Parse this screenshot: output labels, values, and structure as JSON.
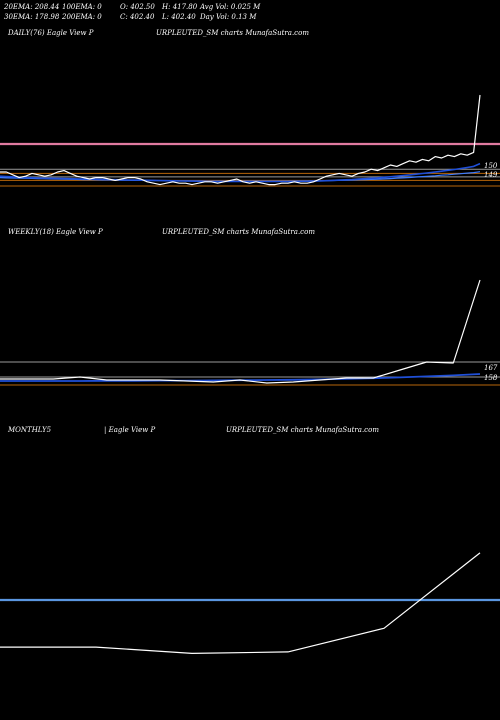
{
  "header": {
    "rows": [
      [
        "20EMA: 208.44",
        "100EMA: 0",
        "O: 402.50",
        "H: 417.80",
        "Avg Vol: 0.025 M"
      ],
      [
        "30EMA: 178.98",
        "200EMA: 0",
        "C: 402.40",
        "L: 402.40",
        "Day Vol: 0.13 M"
      ]
    ]
  },
  "colors": {
    "background": "#000000",
    "price": "#ffffff",
    "ema_fast": "#1f4fd8",
    "ema_slow": "#3b7bff",
    "support_pink": "#e07aa0",
    "grid_gray": "#9a9a9a",
    "support_orange": "#b8660a",
    "weekly_avg": "#5a96e0"
  },
  "panels": {
    "daily": {
      "title": "DAILY(76) Eagle   View  P",
      "source": "URPLEUTED_SM charts MunafaSutra.com",
      "ticks": [
        "150",
        "149"
      ]
    },
    "weekly": {
      "title": "WEEKLY(18) Eagle   View  P",
      "source": "URPLEUTED_SM charts MunafaSutra.com",
      "ticks": [
        "167",
        "158"
      ]
    },
    "monthly": {
      "title": "MONTHLY5",
      "title2": "| Eagle   View  P",
      "source": "URPLEUTED_SM charts MunafaSutra.com"
    }
  },
  "chart_data": [
    {
      "type": "line",
      "title": "DAILY(76)",
      "ylim": [
        130,
        230
      ],
      "series": [
        {
          "values": [
            150,
            150,
            148,
            146,
            147,
            149,
            148,
            147,
            148,
            150,
            151,
            149,
            147,
            146,
            145,
            146,
            146,
            145,
            144,
            145,
            146,
            146,
            145,
            143,
            142,
            141,
            142,
            143,
            142,
            142,
            141,
            142,
            143,
            143,
            142,
            143,
            144,
            145,
            143,
            142,
            143,
            142,
            141,
            141,
            142,
            142,
            143,
            142,
            142,
            143,
            145,
            147,
            148,
            149,
            148,
            147,
            149,
            150,
            152,
            151,
            153,
            155,
            154,
            156,
            158,
            157,
            159,
            158,
            161,
            160,
            162,
            161,
            163,
            162,
            164,
            205
          ]
        },
        {
          "values": [
            147,
            146.8,
            146.5,
            146.2,
            146,
            145.9,
            145.7,
            145.5,
            145.5,
            145.4,
            145.3,
            145.2,
            145.1,
            145,
            144.9,
            144.8,
            144.7,
            144.6,
            144.5,
            144.4,
            144.3,
            144.3,
            144.2,
            144.1,
            144,
            143.9,
            143.8,
            143.7,
            143.6,
            143.6,
            143.5,
            143.4,
            143.4,
            143.3,
            143.3,
            143.3,
            143.3,
            143.3,
            143.3,
            143.3,
            143.3,
            143.3,
            143.3,
            143.3,
            143.3,
            143.3,
            143.3,
            143.4,
            143.4,
            143.5,
            143.6,
            143.8,
            144,
            144.2,
            144.4,
            144.6,
            144.9,
            145.2,
            145.5,
            145.8,
            146.2,
            146.6,
            147,
            147.4,
            147.9,
            148.4,
            148.9,
            149.4,
            150,
            150.6,
            151.2,
            151.8,
            152.5,
            153.2,
            154,
            156
          ]
        },
        {
          "values": [
            146,
            145.8,
            145.7,
            145.6,
            145.5,
            145.4,
            145.3,
            145.2,
            145.1,
            145,
            144.9,
            144.8,
            144.7,
            144.6,
            144.5,
            144.4,
            144.3,
            144.3,
            144.2,
            144.1,
            144.1,
            144,
            144,
            143.9,
            143.9,
            143.8,
            143.8,
            143.7,
            143.7,
            143.6,
            143.6,
            143.6,
            143.5,
            143.5,
            143.5,
            143.5,
            143.5,
            143.5,
            143.5,
            143.5,
            143.5,
            143.5,
            143.5,
            143.5,
            143.5,
            143.5,
            143.6,
            143.6,
            143.6,
            143.7,
            143.7,
            143.8,
            143.9,
            144,
            144.1,
            144.2,
            144.4,
            144.5,
            144.7,
            144.9,
            145.1,
            145.3,
            145.6,
            145.8,
            146.1,
            146.4,
            146.7,
            147,
            147.3,
            147.7,
            148,
            148.4,
            148.8,
            149.2,
            149.6,
            150.2
          ]
        }
      ],
      "levels": [
        {
          "value": 170,
          "color": "pink"
        },
        {
          "value": 152,
          "color": "gray"
        },
        {
          "value": 149,
          "color": "orange"
        },
        {
          "value": 146.5,
          "color": "gray"
        },
        {
          "value": 144,
          "color": "orange"
        },
        {
          "value": 140,
          "color": "orange"
        }
      ]
    },
    {
      "type": "line",
      "title": "WEEKLY(18)",
      "ylim": [
        150,
        220
      ],
      "series": [
        {
          "values": [
            160.5,
            160.5,
            160.5,
            161.5,
            160,
            160,
            160,
            159.5,
            159,
            160,
            158.5,
            159,
            160,
            161,
            161,
            165,
            169,
            168.5,
            210
          ]
        },
        {
          "values": [
            159.5,
            159.5,
            159.5,
            159.5,
            159.6,
            159.6,
            159.7,
            159.7,
            159.8,
            159.9,
            160,
            160.1,
            160.3,
            160.6,
            160.9,
            161.3,
            161.8,
            162.3,
            163
          ]
        }
      ],
      "levels": [
        {
          "value": 169,
          "color": "gray"
        },
        {
          "value": 161.5,
          "color": "gray"
        },
        {
          "value": 157.5,
          "color": "orange"
        }
      ]
    },
    {
      "type": "line",
      "title": "MONTHLY5",
      "series": [
        {
          "values": [
            100,
            100,
            96,
            97,
            112,
            160
          ]
        }
      ],
      "levels": [
        {
          "value": 130,
          "color": "blue"
        }
      ]
    }
  ]
}
